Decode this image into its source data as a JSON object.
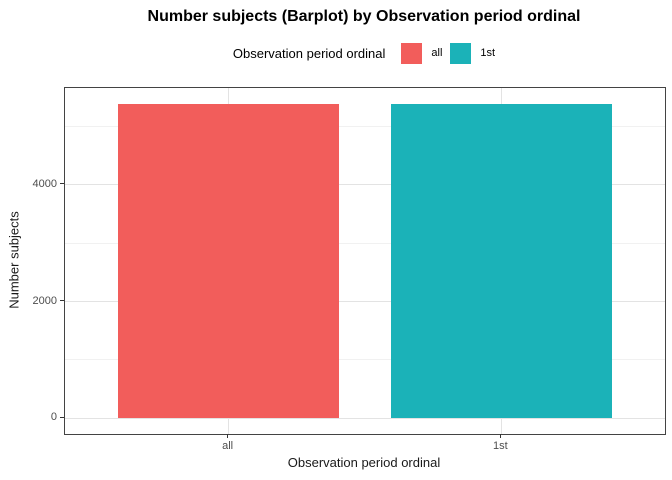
{
  "legend": {
    "title": "Observation period ordinal",
    "items": [
      {
        "label": "all",
        "color": "#F25D5B"
      },
      {
        "label": "1st",
        "color": "#1BB2B8"
      }
    ]
  },
  "chart_data": {
    "type": "bar",
    "title": "Number subjects (Barplot) by Observation period ordinal",
    "xlabel": "Observation period ordinal",
    "ylabel": "Number subjects",
    "categories": [
      "all",
      "1st"
    ],
    "values": [
      5390,
      5390
    ],
    "series": [
      {
        "name": "all",
        "value": 5390,
        "color": "#F25D5B"
      },
      {
        "name": "1st",
        "value": 5390,
        "color": "#1BB2B8"
      }
    ],
    "ylim": [
      -270,
      5660
    ],
    "y_major_ticks": [
      0,
      2000,
      4000
    ],
    "y_minor_ticks": [
      1000,
      3000,
      5000
    ],
    "grid": true,
    "legend_position": "top",
    "panel_background": "#ffffff",
    "panel_border_color": "#434343",
    "grid_major_color": "#e3e3e3",
    "grid_minor_color": "#f1f1f1",
    "tick_label_color": "#4d4d4d"
  }
}
